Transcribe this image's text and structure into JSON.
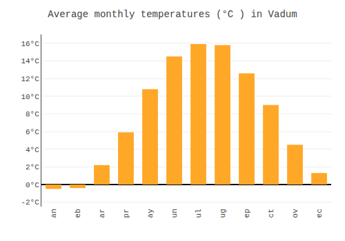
{
  "chart_data": {
    "type": "bar",
    "title": "Average monthly temperatures (°C ) in Vadum",
    "categories": [
      "an",
      "eb",
      "ar",
      "pr",
      "ay",
      "un",
      "ul",
      "ug",
      "ep",
      "ct",
      "ov",
      "ec"
    ],
    "values": [
      -0.5,
      -0.4,
      2.2,
      5.9,
      10.8,
      14.5,
      15.9,
      15.8,
      12.6,
      9.0,
      4.5,
      1.3
    ],
    "color": "#FFA726",
    "ylim": [
      -2.5,
      17.0
    ],
    "yticks": [
      {
        "value": -2,
        "label": "-2°C"
      },
      {
        "value": 0,
        "label": "0°C"
      },
      {
        "value": 2,
        "label": "2°C"
      },
      {
        "value": 4,
        "label": "4°C"
      },
      {
        "value": 6,
        "label": "6°C"
      },
      {
        "value": 8,
        "label": "8°C"
      },
      {
        "value": 10,
        "label": "10°C"
      },
      {
        "value": 12,
        "label": "12°C"
      },
      {
        "value": 14,
        "label": "14°C"
      },
      {
        "value": 16,
        "label": "16°C"
      }
    ],
    "grid": true
  }
}
